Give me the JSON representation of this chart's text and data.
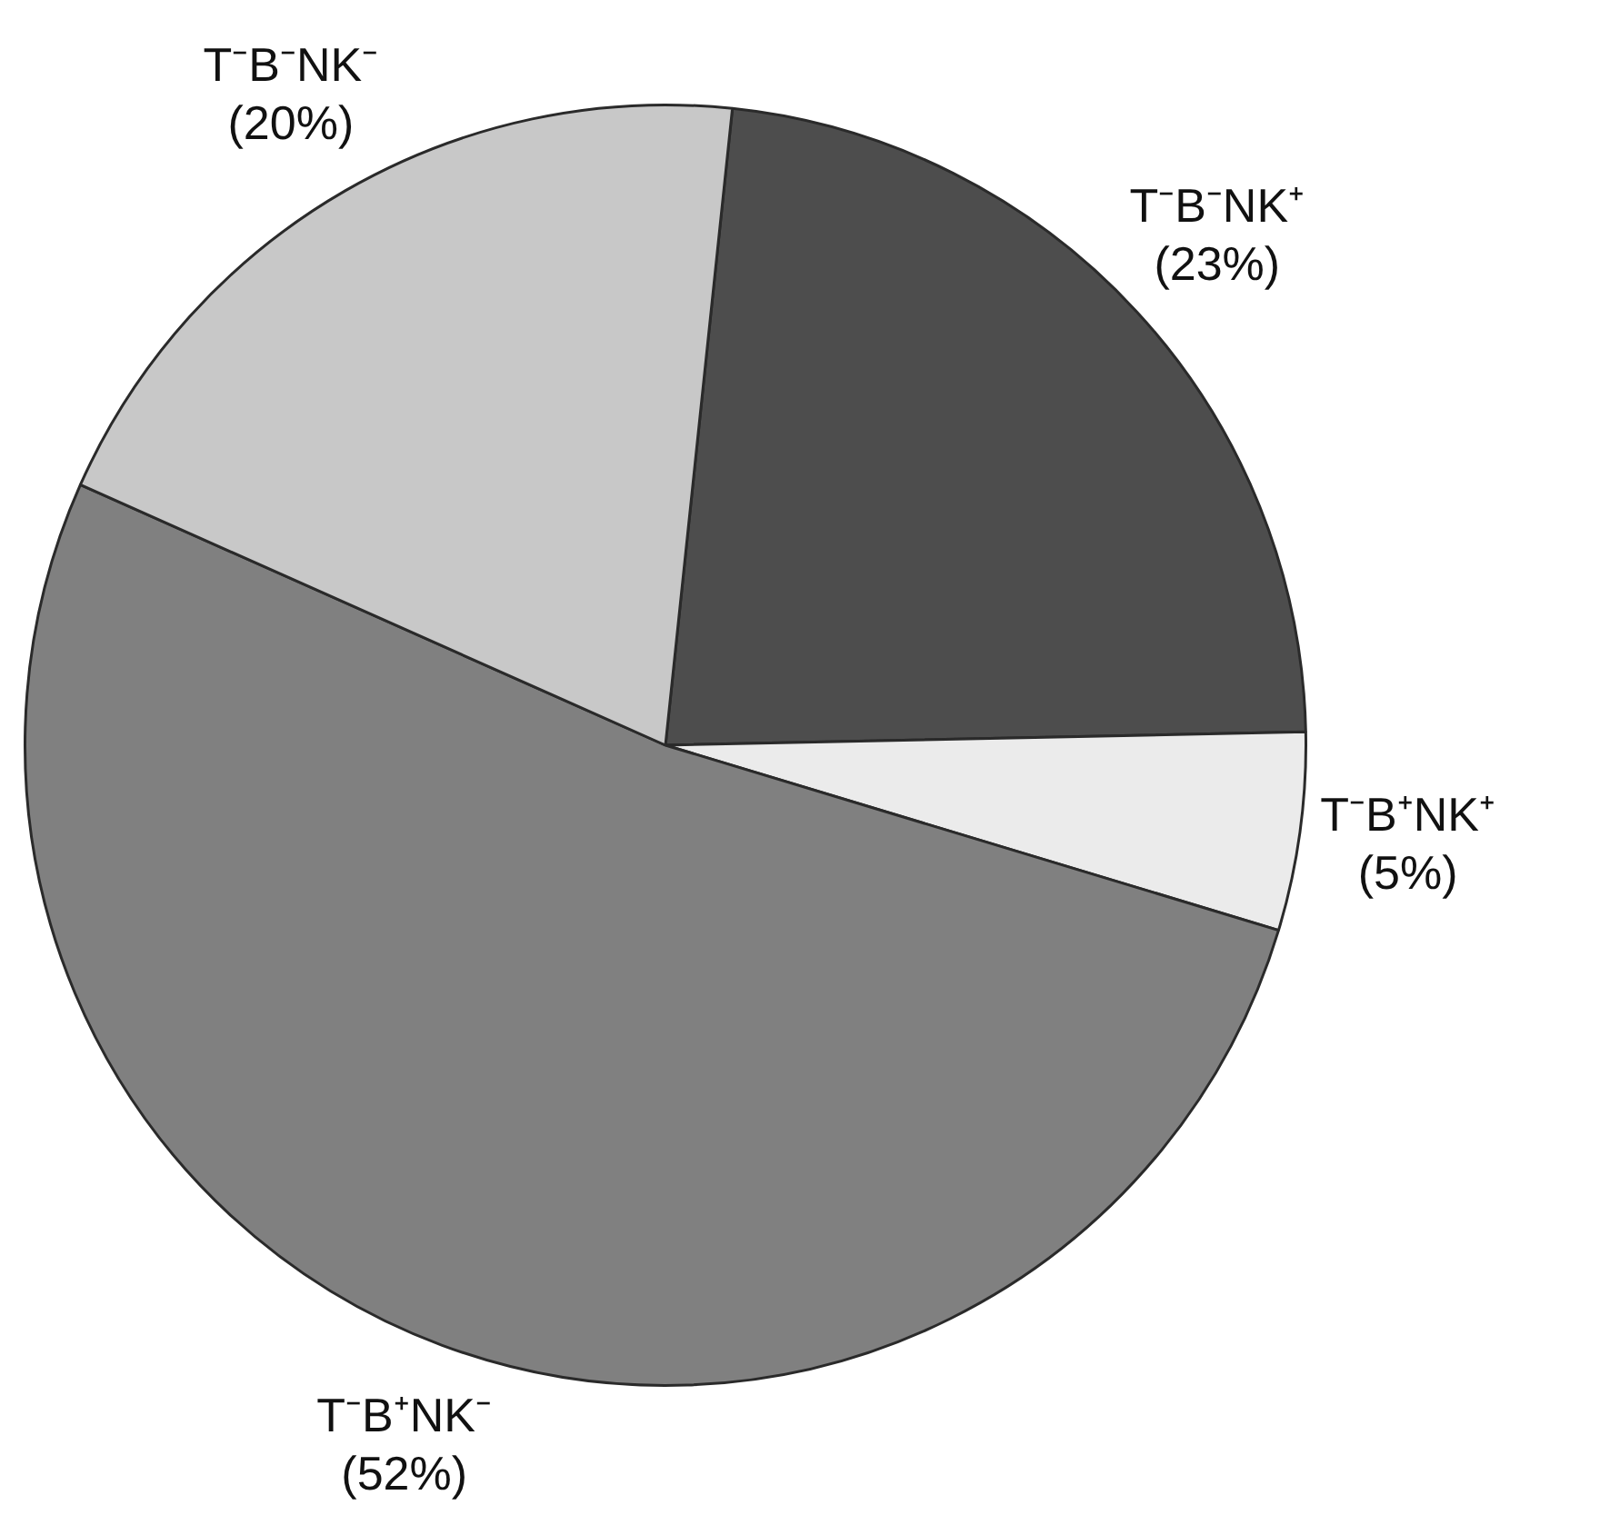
{
  "chart_data": {
    "type": "pie",
    "categories": [
      "T⁻B⁻NK⁺",
      "T⁻B⁺NK⁺",
      "T⁻B⁺NK⁻",
      "T⁻B⁻NK⁻"
    ],
    "values": [
      23,
      5,
      52,
      20
    ],
    "value_labels": [
      "(23%)",
      "(5%)",
      "(52%)",
      "(20%)"
    ],
    "colors": [
      "#4d4d4d",
      "#ebebeb",
      "#808080",
      "#c8c8c8"
    ],
    "legend": false
  }
}
